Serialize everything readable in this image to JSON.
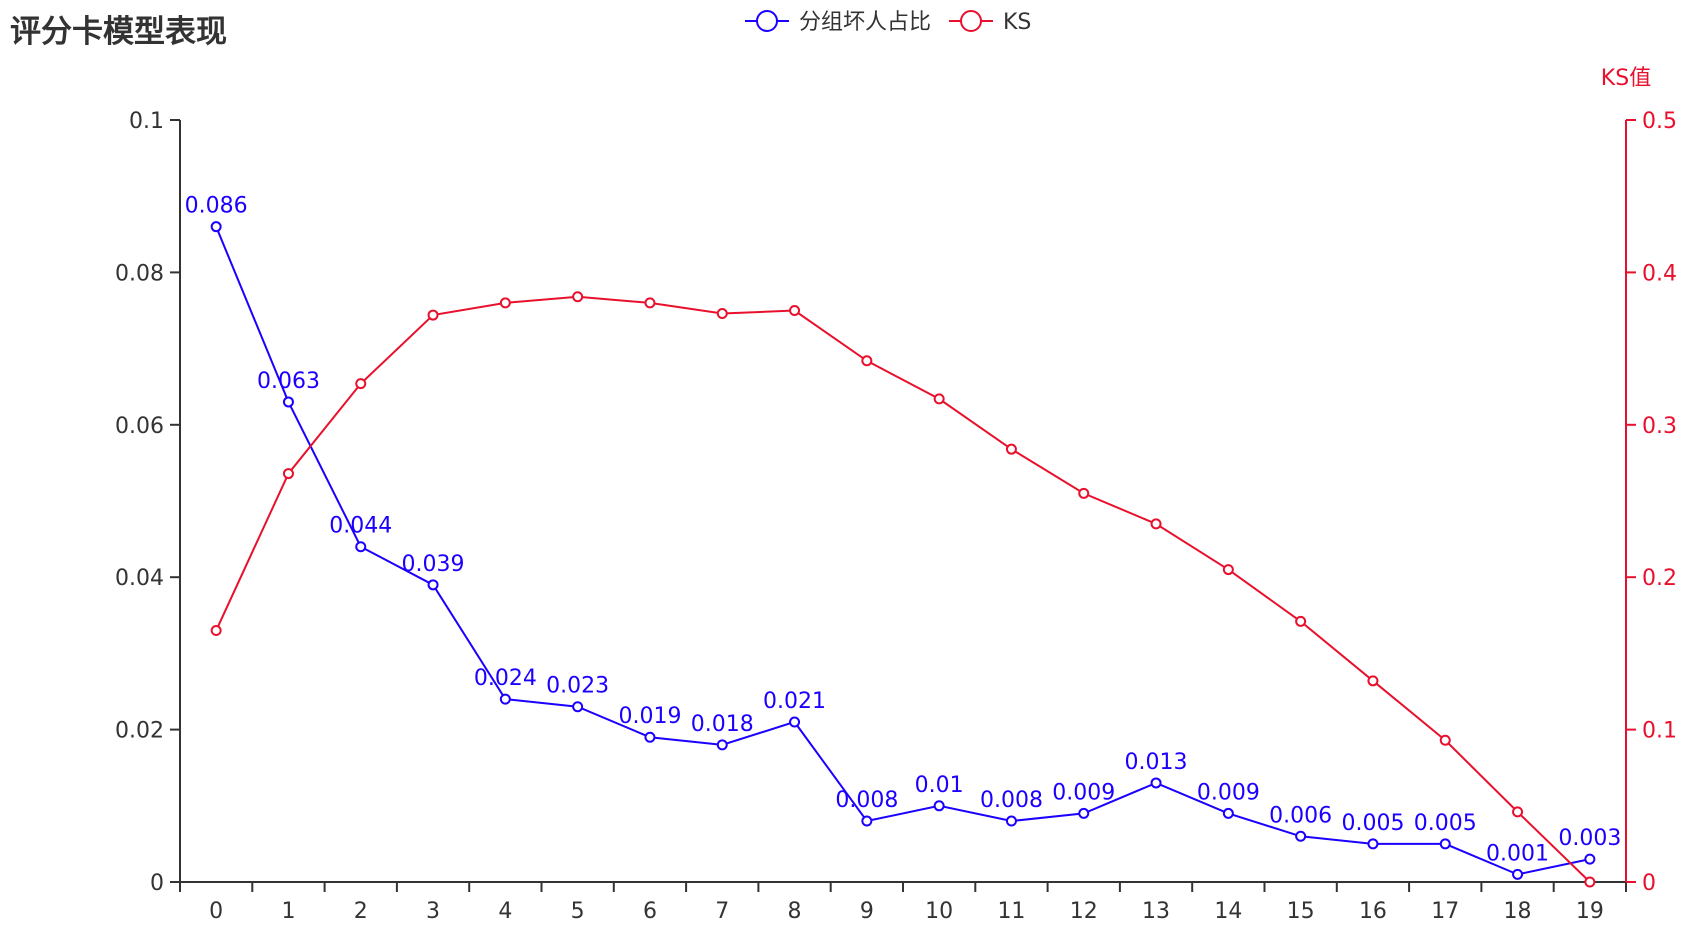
{
  "chart_data": {
    "type": "line",
    "title": "评分卡模型表现",
    "categories": [
      "0",
      "1",
      "2",
      "3",
      "4",
      "5",
      "6",
      "7",
      "8",
      "9",
      "10",
      "11",
      "12",
      "13",
      "14",
      "15",
      "16",
      "17",
      "18",
      "19"
    ],
    "y_left": {
      "ylim": [
        0,
        0.1
      ],
      "ticks": [
        "0",
        "0.02",
        "0.04",
        "0.06",
        "0.08",
        "0.1"
      ],
      "tick_values": [
        0,
        0.02,
        0.04,
        0.06,
        0.08,
        0.1
      ]
    },
    "y_right": {
      "ylabel": "KS值",
      "ylim": [
        0,
        0.5
      ],
      "ticks": [
        "0",
        "0.1",
        "0.2",
        "0.3",
        "0.4",
        "0.5"
      ],
      "tick_values": [
        0,
        0.1,
        0.2,
        0.3,
        0.4,
        0.5
      ],
      "color": "#e8112d"
    },
    "legend_position": "top-center",
    "grid": false,
    "series": [
      {
        "name": "分组坏人占比",
        "axis": "left",
        "color": "#1c00ff",
        "values": [
          0.086,
          0.063,
          0.044,
          0.039,
          0.024,
          0.023,
          0.019,
          0.018,
          0.021,
          0.008,
          0.01,
          0.008,
          0.009,
          0.013,
          0.009,
          0.006,
          0.005,
          0.005,
          0.001,
          0.003
        ],
        "labels": [
          "0.086",
          "0.063",
          "0.044",
          "0.039",
          "0.024",
          "0.023",
          "0.019",
          "0.018",
          "0.021",
          "0.008",
          "0.01",
          "0.008",
          "0.009",
          "0.013",
          "0.009",
          "0.006",
          "0.005",
          "0.005",
          "0.001",
          "0.003"
        ],
        "show_labels": true
      },
      {
        "name": "KS",
        "axis": "right",
        "color": "#e8112d",
        "values": [
          0.165,
          0.268,
          0.327,
          0.372,
          0.38,
          0.384,
          0.38,
          0.373,
          0.375,
          0.342,
          0.317,
          0.284,
          0.255,
          0.235,
          0.205,
          0.171,
          0.132,
          0.093,
          0.046,
          0.0
        ],
        "show_labels": false
      }
    ]
  }
}
